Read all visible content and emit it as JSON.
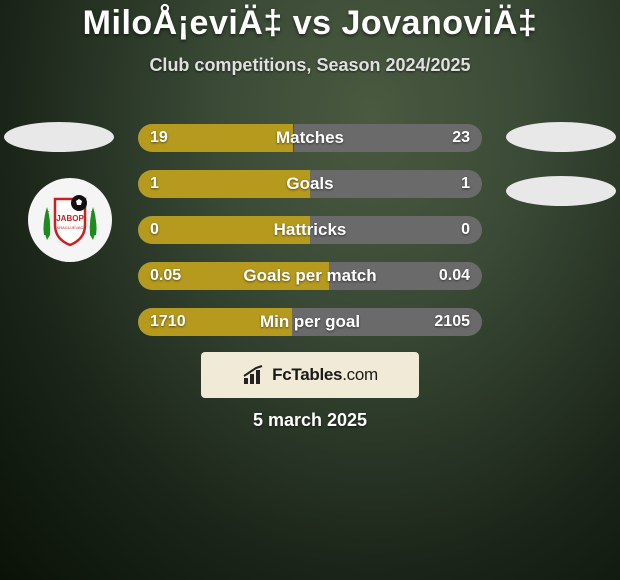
{
  "title": "MiloÅ¡eviÄ‡ vs JovanoviÄ‡",
  "subtitle": "Club competitions, Season 2024/2025",
  "date": "5 march 2025",
  "brand": "FcTables.com",
  "colors": {
    "left_bar": "#b59a1e",
    "right_bar": "#6a6a6a",
    "pill": "#e8e8e8",
    "brand_box": "#f0ead6"
  },
  "club_badge": {
    "shield_fill": "#ffffff",
    "shield_stroke": "#c92020",
    "text": "JABOP",
    "subtext": "KRAGUJEVAC",
    "wreath_color": "#1f8a1f",
    "ball_color": "#111111"
  },
  "bars": [
    {
      "label": "Matches",
      "left": "19",
      "right": "23",
      "left_pct": 45.2,
      "right_pct": 54.8
    },
    {
      "label": "Goals",
      "left": "1",
      "right": "1",
      "left_pct": 50.0,
      "right_pct": 50.0
    },
    {
      "label": "Hattricks",
      "left": "0",
      "right": "0",
      "left_pct": 50.0,
      "right_pct": 50.0
    },
    {
      "label": "Goals per match",
      "left": "0.05",
      "right": "0.04",
      "left_pct": 55.6,
      "right_pct": 44.4
    },
    {
      "label": "Min per goal",
      "left": "1710",
      "right": "2105",
      "left_pct": 44.8,
      "right_pct": 55.2
    }
  ]
}
